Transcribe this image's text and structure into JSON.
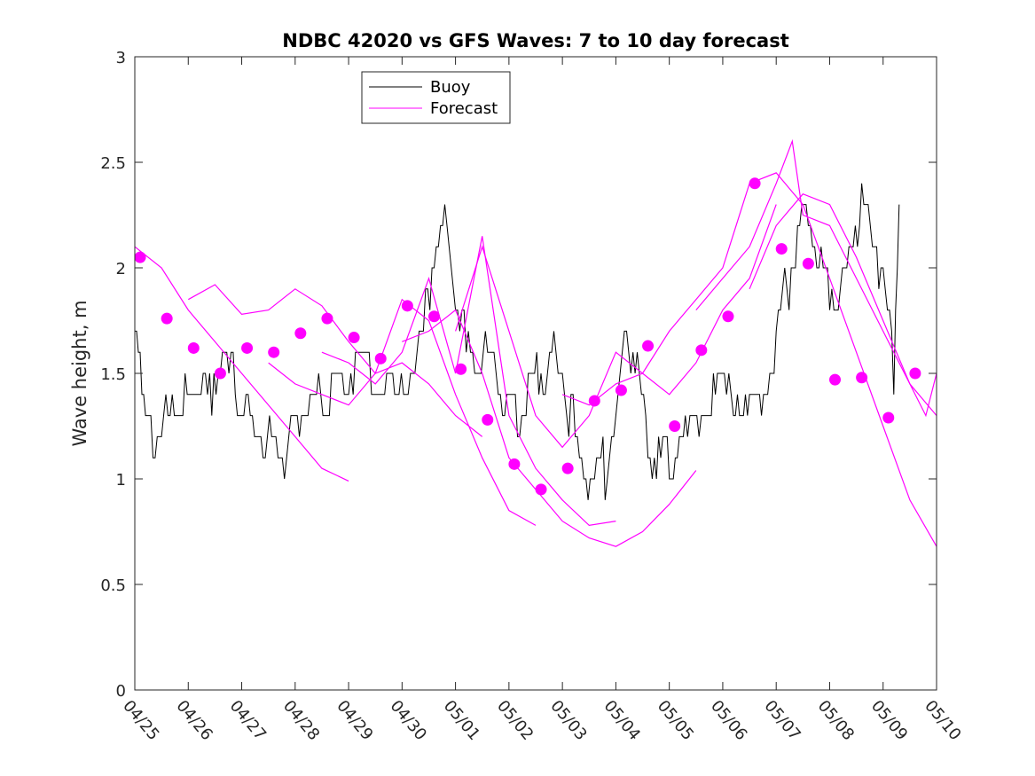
{
  "chart_data": {
    "type": "line",
    "title": "NDBC 42020 vs GFS Waves: 7 to 10 day forecast",
    "xlabel": "",
    "ylabel": "Wave height, m",
    "ylim": [
      0,
      3
    ],
    "yticks": [
      0,
      0.5,
      1,
      1.5,
      2,
      2.5,
      3
    ],
    "ytick_labels": [
      "0",
      "0.5",
      "1",
      "1.5",
      "2",
      "2.5",
      "3"
    ],
    "xlim_days": [
      0,
      15
    ],
    "xtick_labels": [
      "04/25",
      "04/26",
      "04/27",
      "04/28",
      "04/29",
      "04/30",
      "05/01",
      "05/02",
      "05/03",
      "05/04",
      "05/05",
      "05/06",
      "05/07",
      "05/08",
      "05/09",
      "05/10"
    ],
    "grid": false,
    "legend": {
      "placement": "top-left",
      "entries": [
        "Buoy",
        "Forecast"
      ]
    },
    "colors": {
      "buoy": "#000000",
      "forecast": "#ff00ff"
    },
    "series": [
      {
        "name": "Buoy",
        "x": [
          0,
          0.1,
          0.2,
          0.3,
          0.5,
          0.7,
          0.9,
          1.1,
          1.2,
          1.4,
          1.6,
          1.8,
          2.0,
          2.2,
          2.4,
          2.6,
          2.8,
          3.0,
          3.2,
          3.4,
          3.6,
          3.8,
          4.0,
          4.3,
          4.6,
          4.9,
          5.2,
          5.4,
          5.6,
          5.8,
          6.0,
          6.2,
          6.4,
          6.6,
          6.8,
          7.0,
          7.2,
          7.4,
          7.6,
          7.8,
          8.0,
          8.2,
          8.4,
          8.6,
          8.8,
          9.0,
          9.2,
          9.4,
          9.6,
          9.8,
          10.0,
          10.3,
          10.6,
          10.9,
          11.2,
          11.5,
          11.8,
          12.0,
          12.2,
          12.4,
          12.6,
          12.8,
          13.0,
          13.2,
          13.4,
          13.6,
          13.8,
          14.0,
          14.2,
          14.3
        ],
        "y": [
          1.65,
          1.5,
          1.35,
          1.2,
          1.25,
          1.35,
          1.4,
          1.35,
          1.45,
          1.4,
          1.55,
          1.5,
          1.35,
          1.25,
          1.2,
          1.15,
          1.1,
          1.2,
          1.35,
          1.4,
          1.35,
          1.45,
          1.5,
          1.5,
          1.45,
          1.4,
          1.5,
          1.7,
          2.1,
          2.2,
          1.85,
          1.6,
          1.55,
          1.6,
          1.45,
          1.35,
          1.25,
          1.4,
          1.5,
          1.55,
          1.5,
          1.25,
          1.05,
          1.0,
          1.05,
          1.3,
          1.7,
          1.5,
          1.15,
          1.1,
          1.1,
          1.2,
          1.35,
          1.4,
          1.4,
          1.3,
          1.45,
          1.65,
          1.9,
          2.15,
          2.3,
          2.0,
          1.9,
          1.85,
          2.1,
          2.35,
          2.15,
          1.95,
          1.55,
          2.3
        ]
      },
      {
        "name": "Forecast",
        "x": [
          0.1,
          0.6,
          1.1,
          1.6,
          2.1,
          2.6,
          3.1,
          3.6,
          4.1,
          4.6,
          5.1,
          5.6,
          6.1,
          6.6,
          7.1,
          7.6,
          8.1,
          8.6,
          9.1,
          9.6,
          10.1,
          10.6,
          11.1,
          11.6,
          12.1,
          12.6,
          13.1,
          13.6,
          14.1,
          14.6
        ],
        "y": [
          2.05,
          1.76,
          1.62,
          1.5,
          1.62,
          1.6,
          1.69,
          1.76,
          1.67,
          1.57,
          1.82,
          1.77,
          1.52,
          1.28,
          1.07,
          0.95,
          1.05,
          1.37,
          1.42,
          1.63,
          1.25,
          1.61,
          1.77,
          2.4,
          2.09,
          2.02,
          1.47,
          1.48,
          1.29,
          1.5
        ]
      },
      {
        "name": "",
        "x": [
          0,
          0.5,
          1.0,
          1.5,
          2.0,
          2.5,
          3.0,
          3.5,
          4.0
        ],
        "y": [
          2.1,
          2.0,
          1.8,
          1.65,
          1.5,
          1.35,
          1.2,
          1.05,
          0.99
        ]
      },
      {
        "name": "",
        "x": [
          1.0,
          1.5,
          2.0,
          2.5,
          3.0,
          3.5,
          4.0,
          4.5,
          5.0,
          5.5,
          6.0,
          6.5
        ],
        "y": [
          1.85,
          1.92,
          1.78,
          1.8,
          1.9,
          1.82,
          1.65,
          1.5,
          1.55,
          1.45,
          1.3,
          1.2
        ]
      },
      {
        "name": "",
        "x": [
          2.5,
          3.0,
          3.5,
          4.0,
          4.5,
          5.0,
          5.5,
          6.0,
          6.5,
          7.0,
          7.5
        ],
        "y": [
          1.55,
          1.45,
          1.4,
          1.35,
          1.5,
          1.85,
          1.75,
          1.4,
          1.1,
          0.85,
          0.78
        ]
      },
      {
        "name": "",
        "x": [
          3.5,
          4.0,
          4.5,
          5.0,
          5.5,
          6.0,
          6.5,
          7.0,
          7.5,
          8.0,
          8.5,
          9.0
        ],
        "y": [
          1.6,
          1.55,
          1.45,
          1.6,
          1.95,
          1.5,
          2.15,
          1.3,
          1.05,
          0.9,
          0.78,
          0.8
        ]
      },
      {
        "name": "",
        "x": [
          5.0,
          5.5,
          6.0,
          6.5,
          7.0,
          7.5,
          8.0,
          8.5,
          9.0,
          9.5,
          10.0,
          10.5
        ],
        "y": [
          1.65,
          1.7,
          1.8,
          1.5,
          1.1,
          0.95,
          0.8,
          0.72,
          0.68,
          0.75,
          0.88,
          1.04
        ]
      },
      {
        "name": "",
        "x": [
          6.0,
          6.5,
          7.0,
          7.5,
          8.0,
          8.5,
          9.0,
          9.5,
          10.0,
          10.5,
          11.0,
          11.5,
          12.0
        ],
        "y": [
          1.7,
          2.1,
          1.7,
          1.3,
          1.15,
          1.3,
          1.6,
          1.5,
          1.4,
          1.55,
          1.8,
          1.95,
          2.3
        ]
      },
      {
        "name": "",
        "x": [
          8.0,
          8.5,
          9.0,
          9.5,
          10.0,
          10.5,
          11.0,
          11.5,
          12.0,
          12.5,
          13.0,
          13.5,
          14.0,
          14.5,
          15.0
        ],
        "y": [
          1.4,
          1.35,
          1.45,
          1.5,
          1.7,
          1.85,
          2.0,
          2.4,
          2.45,
          2.3,
          1.95,
          1.6,
          1.25,
          0.9,
          0.68
        ]
      },
      {
        "name": "",
        "x": [
          10.5,
          11.0,
          11.5,
          12.0,
          12.3,
          12.5,
          13.0,
          13.5,
          14.0,
          14.5,
          15.0
        ],
        "y": [
          1.8,
          1.95,
          2.1,
          2.4,
          2.6,
          2.25,
          2.2,
          1.95,
          1.7,
          1.45,
          1.3
        ]
      },
      {
        "name": "",
        "x": [
          11.5,
          12.0,
          12.5,
          13.0,
          13.5,
          14.0,
          14.5,
          14.8,
          15.0
        ],
        "y": [
          1.9,
          2.2,
          2.35,
          2.3,
          2.05,
          1.75,
          1.45,
          1.3,
          1.5
        ]
      }
    ]
  }
}
